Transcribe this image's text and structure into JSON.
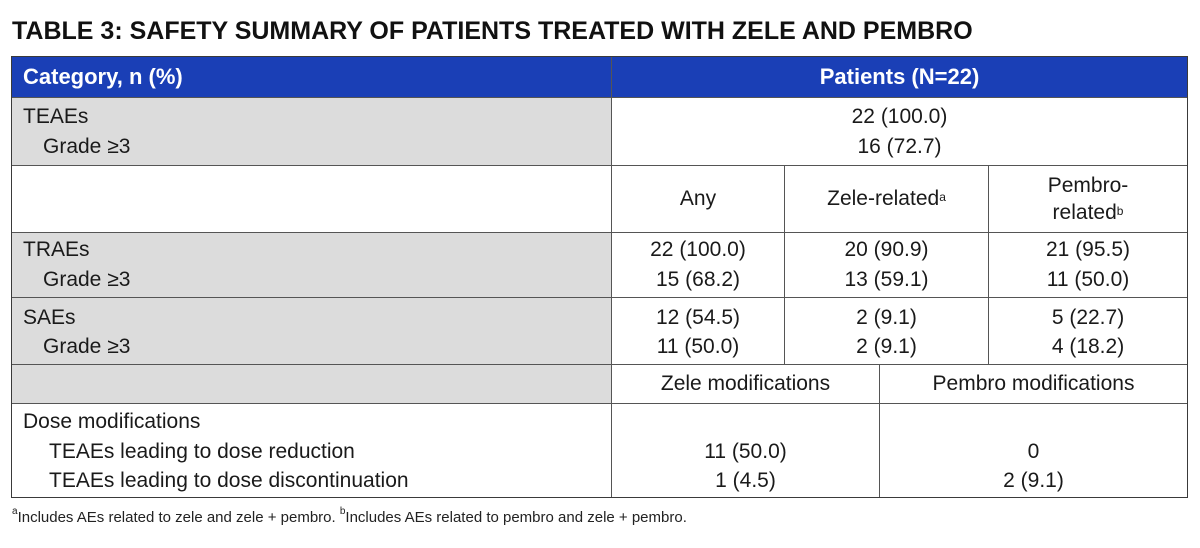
{
  "title": "TABLE 3: SAFETY SUMMARY OF PATIENTS TREATED WITH ZELE AND PEMBRO",
  "header": {
    "category": "Category, n (%)",
    "patients": "Patients (N=22)"
  },
  "teaes": {
    "label": "TEAEs",
    "sub_label": "Grade ≥3",
    "value": "22 (100.0)",
    "sub_value": "16 (72.7)"
  },
  "subheader": {
    "any": "Any",
    "zele_related": "Zele-related",
    "zele_related_note": "a",
    "pembro_related_line1": "Pembro-",
    "pembro_related_line2": "related",
    "pembro_related_note": "b"
  },
  "traes": {
    "label": "TRAEs",
    "sub_label": "Grade ≥3",
    "any": "22 (100.0)",
    "any_sub": "15 (68.2)",
    "zele": "20 (90.9)",
    "zele_sub": "13 (59.1)",
    "pembro": "21 (95.5)",
    "pembro_sub": "11 (50.0)"
  },
  "saes": {
    "label": "SAEs",
    "sub_label": "Grade ≥3",
    "any": "12 (54.5)",
    "any_sub": "11 (50.0)",
    "zele": "2 (9.1)",
    "zele_sub": "2 (9.1)",
    "pembro": "5 (22.7)",
    "pembro_sub": "4 (18.2)"
  },
  "modifications_header": {
    "zele": "Zele modifications",
    "pembro": "Pembro modifications"
  },
  "dose_modifications": {
    "label": "Dose modifications",
    "reduction_label": "TEAEs leading to dose reduction",
    "discontinuation_label": "TEAEs leading to dose discontinuation",
    "zele_reduction": "11 (50.0)",
    "zele_discontinuation": "1 (4.5)",
    "pembro_reduction": "0",
    "pembro_discontinuation": "2 (9.1)"
  },
  "footnote": {
    "a_mark": "a",
    "a_text": "Includes AEs related to zele and zele + pembro. ",
    "b_mark": "b",
    "b_text": "Includes AEs related to pembro and zele + pembro."
  },
  "colors": {
    "header_blue": "#1a3fb6",
    "row_grey": "#dcdcdc"
  }
}
